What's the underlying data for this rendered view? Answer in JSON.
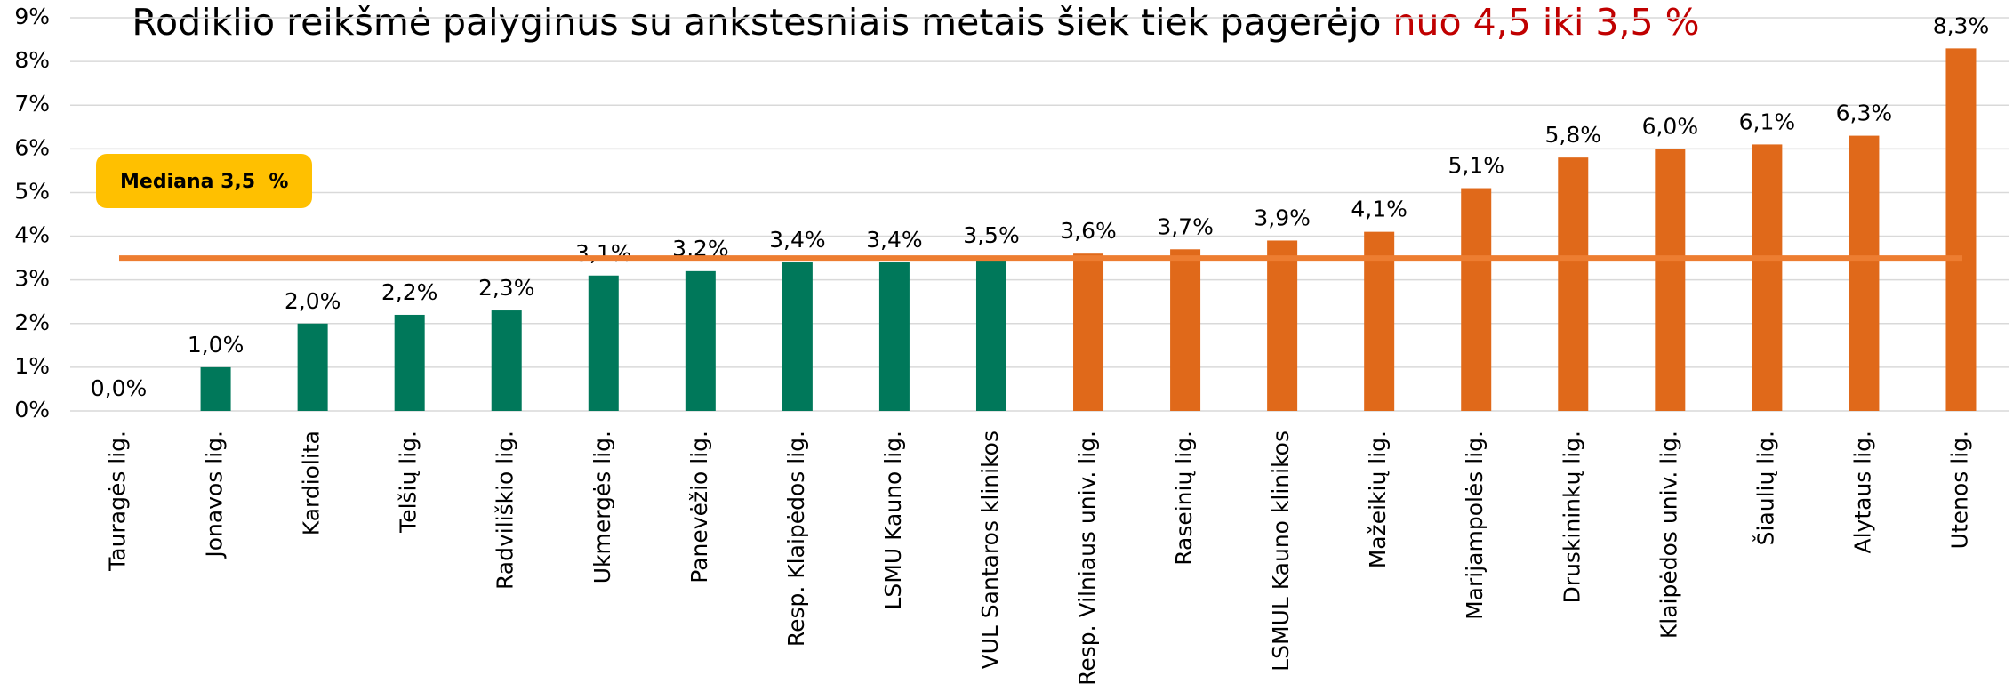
{
  "chart_data": {
    "type": "bar",
    "title": "Rodiklio reikšmė palyginus su ankstesniais metais šiek tiek pagerėjo ",
    "title_highlight": "nuo 4,5 iki 3,5 %",
    "categories": [
      "Tauragės lig.",
      "Jonavos lig.",
      "Kardiolita",
      "Telšių lig.",
      "Radviliškio lig.",
      "Ukmergės lig.",
      "Panevėžio lig.",
      "Resp. Klaipėdos lig.",
      "LSMU Kauno lig.",
      "VUL Santaros klinikos",
      "Resp. Vilniaus univ. lig.",
      "Raseinių lig.",
      "LSMUL Kauno klinikos",
      "Mažeikių lig.",
      "Marijampolės lig.",
      "Druskininkų lig.",
      "Klaipėdos univ. lig.",
      "Šiaulių lig.",
      "Alytaus lig.",
      "Utenos lig."
    ],
    "values": [
      0.0,
      1.0,
      2.0,
      2.2,
      2.3,
      3.1,
      3.2,
      3.4,
      3.4,
      3.5,
      3.6,
      3.7,
      3.9,
      4.1,
      5.1,
      5.8,
      6.0,
      6.1,
      6.3,
      8.3
    ],
    "value_labels": [
      "0,0%",
      "1,0%",
      "2,0%",
      "2,2%",
      "2,3%",
      "3,1%",
      "3,2%",
      "3,4%",
      "3,4%",
      "3,5%",
      "3,6%",
      "3,7%",
      "3,9%",
      "4,1%",
      "5,1%",
      "5,8%",
      "6,0%",
      "6,1%",
      "6,3%",
      "8,3%"
    ],
    "colors": [
      "#00785a",
      "#00785a",
      "#00785a",
      "#00785a",
      "#00785a",
      "#00785a",
      "#00785a",
      "#00785a",
      "#00785a",
      "#00785a",
      "#e0691a",
      "#e0691a",
      "#e0691a",
      "#e0691a",
      "#e0691a",
      "#e0691a",
      "#e0691a",
      "#e0691a",
      "#e0691a",
      "#e0691a"
    ],
    "ylim": [
      0,
      9
    ],
    "yticks": [
      {
        "value": 0,
        "label": "0%"
      },
      {
        "value": 1,
        "label": "1%"
      },
      {
        "value": 2,
        "label": "2%"
      },
      {
        "value": 3,
        "label": "3%"
      },
      {
        "value": 4,
        "label": "4%"
      },
      {
        "value": 5,
        "label": "5%"
      },
      {
        "value": 6,
        "label": "6%"
      },
      {
        "value": 7,
        "label": "7%"
      },
      {
        "value": 8,
        "label": "8%"
      },
      {
        "value": 9,
        "label": "9%"
      }
    ],
    "grid": true,
    "median": {
      "value": 3.5,
      "label": "Mediana 3,5  %",
      "color": "#ed7d31"
    }
  }
}
